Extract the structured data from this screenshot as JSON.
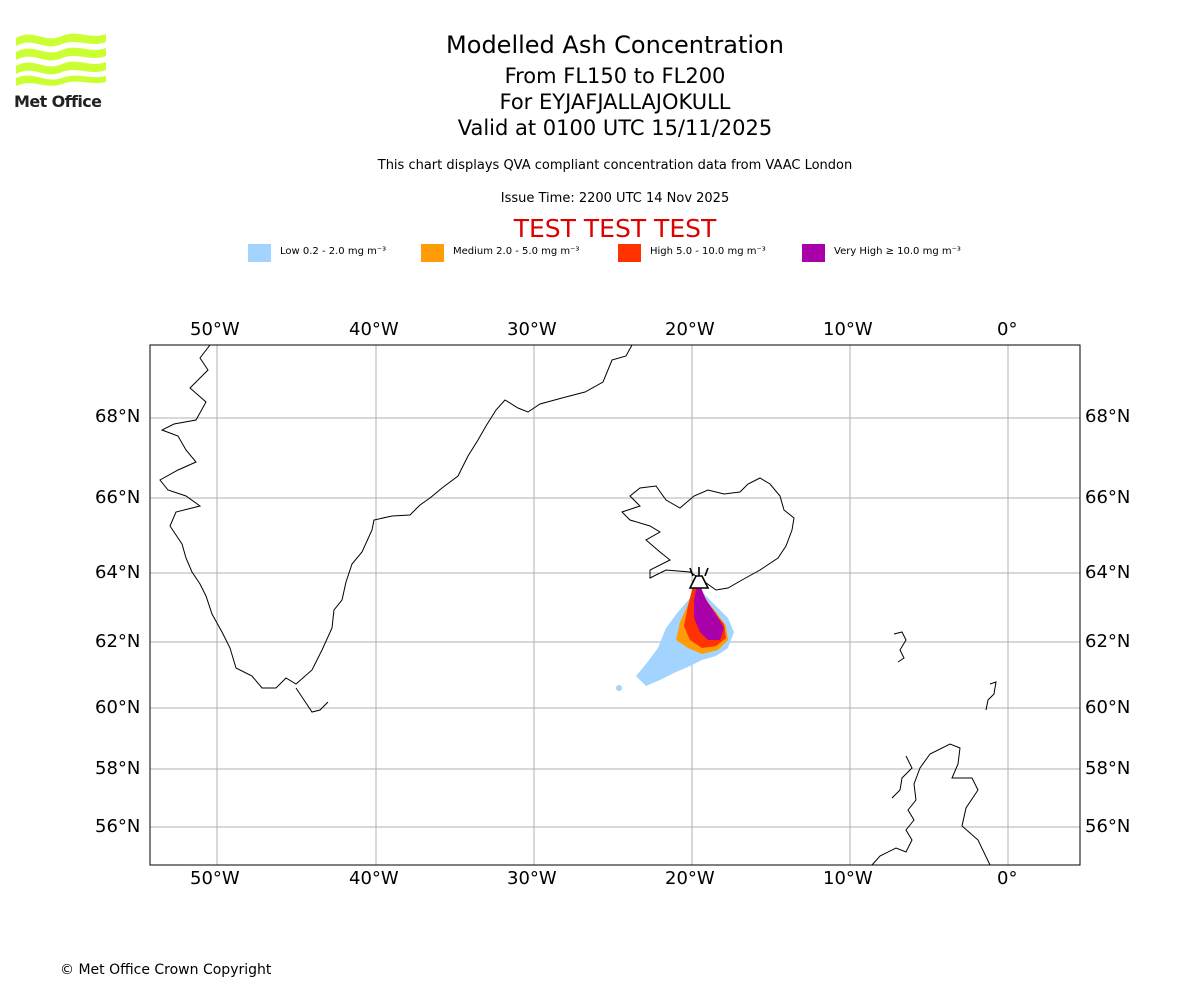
{
  "logo": {
    "name": "Met Office",
    "color": "#ccff33"
  },
  "title": {
    "main": "Modelled Ash Concentration",
    "levels": "From FL150 to FL200",
    "volcano": "For EYJAFJALLAJOKULL",
    "valid": "Valid at 0100 UTC 15/11/2025"
  },
  "subtitle": "This chart displays QVA compliant concentration data from VAAC London",
  "issue_time": "Issue Time: 2200 UTC 14 Nov 2025",
  "test_banner": "TEST TEST TEST",
  "legend": [
    {
      "label": "Low 0.2 - 2.0 mg m⁻³",
      "color": "#a3d4ff"
    },
    {
      "label": "Medium 2.0 - 5.0 mg m⁻³",
      "color": "#ff9c08"
    },
    {
      "label": "High 5.0 - 10.0 mg m⁻³",
      "color": "#ff3300"
    },
    {
      "label": "Very High ≥ 10.0 mg m⁻³",
      "color": "#aa00aa"
    }
  ],
  "map": {
    "longitude_ticks": [
      "50°W",
      "40°W",
      "30°W",
      "20°W",
      "10°W",
      "0°"
    ],
    "latitude_ticks": [
      "68°N",
      "66°N",
      "64°N",
      "62°N",
      "60°N",
      "58°N",
      "56°N"
    ]
  },
  "copyright": "© Met Office Crown Copyright"
}
